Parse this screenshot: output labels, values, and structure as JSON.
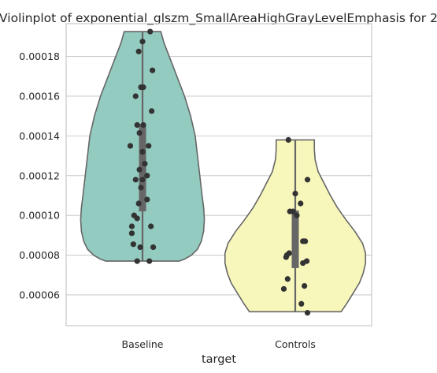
{
  "chart_data": {
    "type": "violin",
    "title": "Violinplot of exponential_glszm_SmallAreaHighGrayLevelEmphasis for 2",
    "xlabel": "target",
    "ylabel": "",
    "categories": [
      "Baseline",
      "Controls"
    ],
    "ylim": [
      4.45e-05,
      0.0001965
    ],
    "yticks": [
      6e-05,
      8e-05,
      0.0001,
      0.00012,
      0.00014,
      0.00016,
      0.00018
    ],
    "ytick_labels": [
      "0.00006",
      "0.00008",
      "0.00010",
      "0.00012",
      "0.00014",
      "0.00016",
      "0.00018"
    ],
    "grid": true,
    "colors": {
      "Baseline": "#93cbc0",
      "Controls": "#f8f7bb",
      "edge": "#666666",
      "points": "#333333"
    },
    "violins": [
      {
        "category": "Baseline",
        "min": 7.7e-05,
        "max": 0.0001925,
        "median": 0.0001215,
        "box": [
          0.000102,
          0.000146
        ],
        "whisker": [
          7.7e-05,
          0.0001925
        ],
        "profile_y": [
          7.7e-05,
          7.8e-05,
          8e-05,
          8.3e-05,
          8.7e-05,
          9.2e-05,
          9.8e-05,
          0.000104,
          0.00011,
          0.00012,
          0.00013,
          0.00014,
          0.00015,
          0.00016,
          0.00017,
          0.00018,
          0.000187,
          0.0001925
        ],
        "profile_w": [
          0.48,
          0.55,
          0.64,
          0.72,
          0.77,
          0.8,
          0.81,
          0.8,
          0.78,
          0.75,
          0.72,
          0.69,
          0.63,
          0.55,
          0.45,
          0.35,
          0.28,
          0.24
        ],
        "points": [
          0.0001925,
          0.0001875,
          0.0001825,
          0.000173,
          0.0001645,
          0.0001645,
          0.00016,
          0.0001525,
          0.0001455,
          0.0001455,
          0.0001415,
          0.000135,
          0.000135,
          0.000132,
          0.000126,
          0.000123,
          0.00012,
          0.000118,
          0.000118,
          0.000114,
          0.000108,
          0.000106,
          0.0001,
          9.85e-05,
          9.45e-05,
          9.45e-05,
          9.1e-05,
          8.55e-05,
          8.4e-05,
          8.4e-05,
          7.7e-05,
          7.7e-05
        ],
        "jitter": [
          0.1,
          0.0,
          -0.05,
          0.13,
          -0.02,
          0.01,
          -0.09,
          0.12,
          -0.07,
          0.01,
          -0.04,
          -0.16,
          0.08,
          0.0,
          0.03,
          -0.04,
          0.06,
          -0.09,
          0.0,
          -0.02,
          0.06,
          -0.05,
          -0.11,
          -0.07,
          -0.14,
          0.11,
          -0.14,
          -0.12,
          -0.03,
          0.14,
          -0.07,
          0.09
        ]
      },
      {
        "category": "Controls",
        "min": 5.15e-05,
        "max": 0.000138,
        "median": 9.8e-05,
        "box": [
          7.35e-05,
          0.0001025
        ],
        "whisker": [
          5.15e-05,
          0.000138
        ],
        "profile_y": [
          5.15e-05,
          5.6e-05,
          6.1e-05,
          6.6e-05,
          7.1e-05,
          7.6e-05,
          8.1e-05,
          8.6e-05,
          9.2e-05,
          9.8e-05,
          0.000104,
          0.00011,
          0.000116,
          0.000122,
          0.000128,
          0.000133,
          0.000138
        ],
        "profile_w": [
          0.6,
          0.68,
          0.76,
          0.84,
          0.89,
          0.92,
          0.92,
          0.88,
          0.78,
          0.66,
          0.55,
          0.46,
          0.38,
          0.3,
          0.26,
          0.25,
          0.25
        ],
        "points": [
          0.000138,
          0.000118,
          0.000111,
          0.000106,
          0.000102,
          0.000102,
          0.0001,
          8.7e-05,
          8.7e-05,
          8.1e-05,
          8e-05,
          7.9e-05,
          7.7e-05,
          7.6e-05,
          6.8e-05,
          6.45e-05,
          6.3e-05,
          5.55e-05,
          5.1e-05
        ],
        "jitter": [
          -0.09,
          0.16,
          0.0,
          0.07,
          -0.07,
          -0.03,
          0.02,
          0.1,
          0.13,
          -0.08,
          -0.11,
          -0.12,
          0.15,
          0.1,
          -0.1,
          0.12,
          -0.15,
          0.08,
          0.16
        ]
      }
    ]
  }
}
